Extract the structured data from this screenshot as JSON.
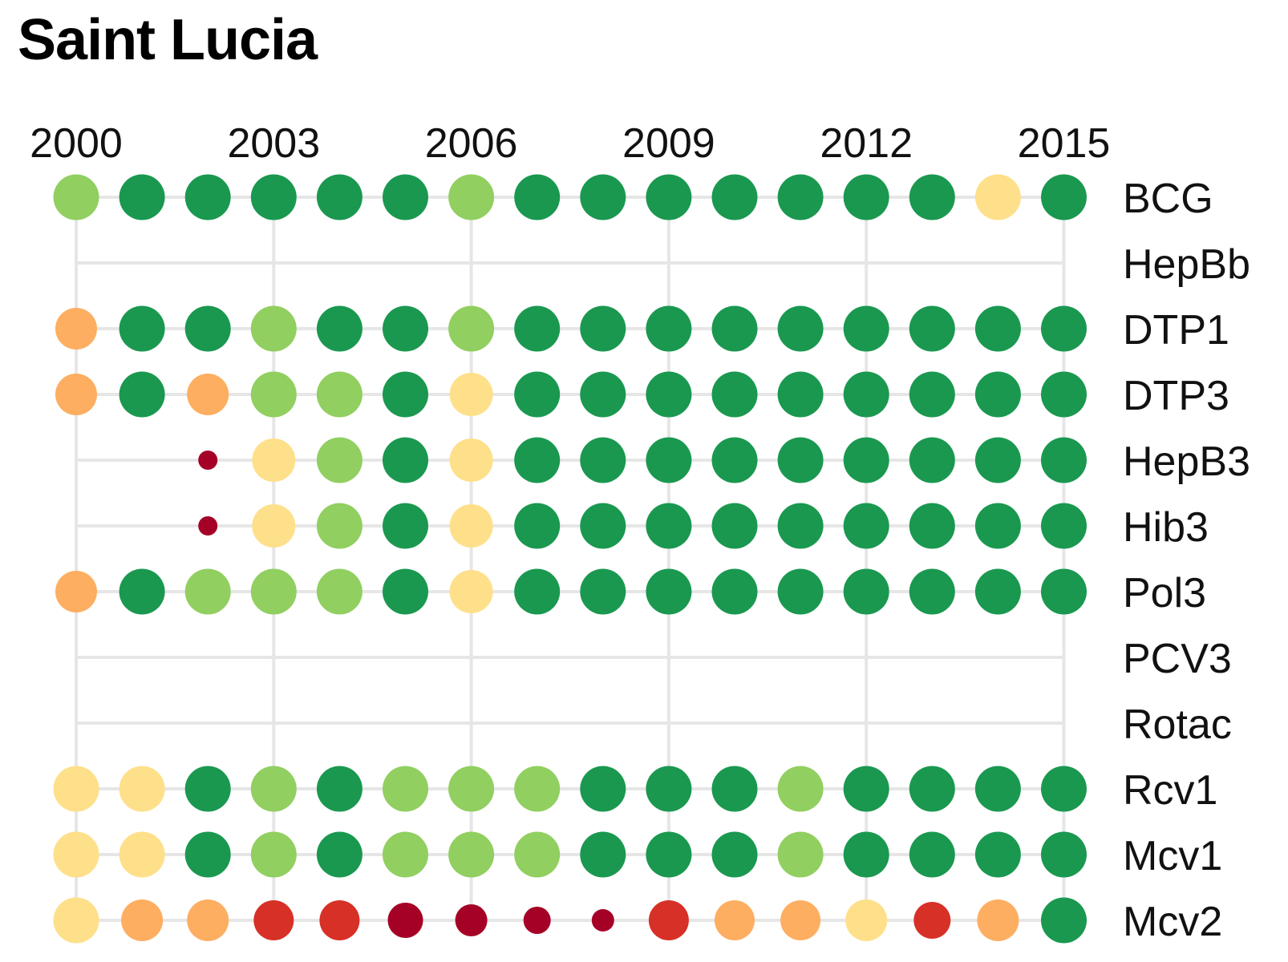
{
  "chart_data": {
    "type": "scatter",
    "title": "Saint Lucia",
    "x_ticks": [
      "2000",
      "2003",
      "2006",
      "2009",
      "2012",
      "2015"
    ],
    "years": [
      2000,
      2001,
      2002,
      2003,
      2004,
      2005,
      2006,
      2007,
      2008,
      2009,
      2010,
      2011,
      2012,
      2013,
      2014,
      2015
    ],
    "vaccines": [
      "BCG",
      "HepBb",
      "DTP1",
      "DTP3",
      "HepB3",
      "Hib3",
      "Pol3",
      "PCV3",
      "Rotac",
      "Rcv1",
      "Mcv1",
      "Mcv2"
    ],
    "color_scale": {
      "1": "#a50026",
      "2": "#d73027",
      "3": "#fdae61",
      "4": "#fee08b",
      "5": "#91cf60",
      "6": "#1a9850"
    },
    "series": [
      {
        "name": "BCG",
        "levels": [
          5,
          6,
          6,
          6,
          6,
          6,
          5,
          6,
          6,
          6,
          6,
          6,
          6,
          6,
          4,
          6
        ]
      },
      {
        "name": "HepBb",
        "levels": [
          null,
          null,
          null,
          null,
          null,
          null,
          null,
          null,
          null,
          null,
          null,
          null,
          null,
          null,
          null,
          null
        ]
      },
      {
        "name": "DTP1",
        "levels": [
          3,
          6,
          6,
          5,
          6,
          6,
          5,
          6,
          6,
          6,
          6,
          6,
          6,
          6,
          6,
          6
        ]
      },
      {
        "name": "DTP3",
        "levels": [
          3,
          6,
          3,
          5,
          5,
          6,
          4,
          6,
          6,
          6,
          6,
          6,
          6,
          6,
          6,
          6
        ]
      },
      {
        "name": "HepB3",
        "levels": [
          null,
          null,
          1,
          4,
          5,
          6,
          4,
          6,
          6,
          6,
          6,
          6,
          6,
          6,
          6,
          6
        ]
      },
      {
        "name": "Hib3",
        "levels": [
          null,
          null,
          1,
          4,
          5,
          6,
          4,
          6,
          6,
          6,
          6,
          6,
          6,
          6,
          6,
          6
        ]
      },
      {
        "name": "Pol3",
        "levels": [
          3,
          6,
          5,
          5,
          5,
          6,
          4,
          6,
          6,
          6,
          6,
          6,
          6,
          6,
          6,
          6
        ]
      },
      {
        "name": "PCV3",
        "levels": [
          null,
          null,
          null,
          null,
          null,
          null,
          null,
          null,
          null,
          null,
          null,
          null,
          null,
          null,
          null,
          null
        ]
      },
      {
        "name": "Rotac",
        "levels": [
          null,
          null,
          null,
          null,
          null,
          null,
          null,
          null,
          null,
          null,
          null,
          null,
          null,
          null,
          null,
          null
        ]
      },
      {
        "name": "Rcv1",
        "levels": [
          4,
          4,
          6,
          5,
          6,
          5,
          5,
          5,
          6,
          6,
          6,
          5,
          6,
          6,
          6,
          6
        ]
      },
      {
        "name": "Mcv1",
        "levels": [
          4,
          4,
          6,
          5,
          6,
          5,
          5,
          5,
          6,
          6,
          6,
          5,
          6,
          6,
          6,
          6
        ]
      },
      {
        "name": "Mcv2",
        "levels": [
          4,
          3,
          3,
          2,
          2,
          1,
          1,
          1,
          1,
          2,
          3,
          3,
          4,
          2,
          3,
          6
        ]
      }
    ]
  }
}
